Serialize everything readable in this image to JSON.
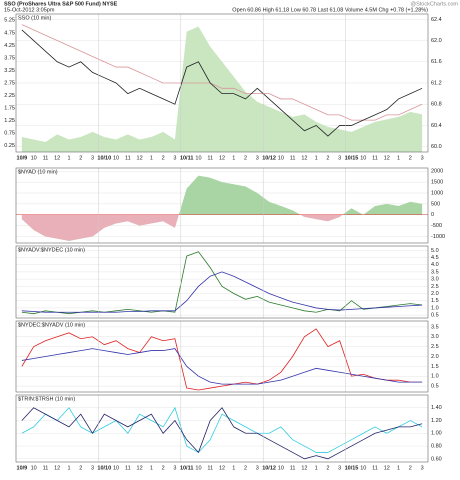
{
  "chart_data": [
    {
      "type": "line",
      "title": "SSO (ProShares Ultra S&P 500 Fund) NYSE",
      "subtitle": "15-Oct-2012 3:05pm",
      "annotation": "Open 60.86  High 61.18  Low 60.78  Last 61.08  Volume 4.5M  Chg +0.78 (+1.28%)",
      "watermark": "@StockCharts.com",
      "legend": "SSO (10 min)",
      "categories": [
        "10/9",
        "10",
        "11",
        "12",
        "1",
        "2",
        "3",
        "10/10",
        "10",
        "11",
        "12",
        "1",
        "2",
        "3",
        "10/11",
        "10",
        "11",
        "12",
        "1",
        "2",
        "3",
        "10/12",
        "10",
        "11",
        "12",
        "1",
        "2",
        "3",
        "10/15",
        "10",
        "11",
        "12",
        "1",
        "2",
        "3"
      ],
      "ylim": [
        59.9,
        62.5
      ],
      "yticks": [
        {
          "value": 60,
          "label": "60.0"
        },
        60.4,
        60.8,
        61.2,
        61.6,
        {
          "value": 62,
          "label": "62.0"
        },
        62.4
      ],
      "y2lim": [
        0,
        5.5
      ],
      "y2ticks": [
        0.25,
        0.75,
        1.25,
        1.75,
        2.25,
        2.75,
        3.25,
        3.75,
        4.25,
        4.75,
        5.25
      ],
      "grid": true,
      "series": [
        {
          "type": "area",
          "axis": "y2",
          "color": "#c9e6c1",
          "values": [
            0.6,
            0.5,
            0.4,
            0.7,
            0.5,
            0.6,
            0.8,
            0.6,
            0.5,
            0.7,
            0.5,
            0.6,
            0.8,
            0.5,
            4.8,
            5.0,
            4.2,
            3.6,
            3.0,
            2.4,
            2.0,
            1.8,
            1.6,
            1.4,
            1.5,
            1.2,
            1.0,
            0.9,
            0.8,
            1.0,
            1.2,
            1.3,
            1.4,
            1.6,
            1.5
          ]
        },
        {
          "type": "line",
          "color": "#d9959a",
          "values": [
            62.3,
            62.2,
            62.1,
            62.0,
            61.9,
            61.8,
            61.7,
            61.6,
            61.5,
            61.5,
            61.4,
            61.3,
            61.2,
            61.2,
            61.2,
            61.2,
            61.2,
            61.1,
            61.1,
            61.0,
            61.0,
            61.0,
            60.9,
            60.9,
            60.8,
            60.7,
            60.6,
            60.6,
            60.5,
            60.5,
            60.5,
            60.6,
            60.6,
            60.7,
            60.8
          ]
        },
        {
          "type": "line",
          "color": "#222222",
          "values": [
            62.2,
            62.0,
            61.8,
            61.6,
            61.5,
            61.6,
            61.4,
            61.3,
            61.2,
            61.0,
            61.1,
            61.0,
            60.9,
            60.8,
            61.5,
            61.6,
            61.2,
            61.0,
            61.0,
            60.9,
            61.1,
            60.9,
            60.7,
            60.5,
            60.3,
            60.4,
            60.2,
            60.4,
            60.4,
            60.5,
            60.6,
            60.7,
            60.9,
            61.0,
            61.1
          ]
        }
      ]
    },
    {
      "type": "area",
      "legend": "$NYAD (10 min)",
      "ylim": [
        -1300,
        2150
      ],
      "yticks": [
        -1000,
        -500,
        0,
        500,
        1000,
        1500,
        2000
      ],
      "grid": true,
      "series": [
        {
          "type": "area",
          "color": "#a9d4a3",
          "negative_color": "#eab0ba",
          "values": [
            -200,
            -700,
            -1000,
            -1100,
            -1200,
            -1100,
            -1000,
            -600,
            -400,
            -300,
            -500,
            -400,
            -300,
            -600,
            1200,
            1800,
            1700,
            1500,
            1400,
            1300,
            1000,
            600,
            400,
            200,
            -100,
            -200,
            -300,
            -100,
            300,
            0,
            400,
            500,
            400,
            600,
            500
          ]
        }
      ]
    },
    {
      "type": "line",
      "legend": "$NYADV:$NYDEC (10 min)",
      "ylim": [
        0.3,
        5.3
      ],
      "yticks": [
        0.5,
        {
          "value": 1,
          "label": "1.0"
        },
        1.5,
        {
          "value": 2,
          "label": "2.0"
        },
        2.5,
        {
          "value": 3,
          "label": "3.0"
        },
        3.5,
        {
          "value": 4,
          "label": "4.0"
        },
        4.5,
        {
          "value": 5,
          "label": "5.0"
        }
      ],
      "grid": true,
      "series": [
        {
          "type": "line",
          "color": "#2a7a2a",
          "values": [
            0.7,
            0.6,
            0.8,
            0.7,
            0.6,
            0.7,
            0.8,
            0.7,
            0.8,
            0.9,
            0.8,
            0.7,
            0.8,
            0.7,
            4.6,
            4.9,
            3.8,
            2.5,
            2.0,
            1.6,
            1.8,
            1.4,
            1.2,
            1.0,
            0.8,
            0.7,
            0.9,
            0.8,
            1.5,
            0.9,
            1.0,
            1.1,
            1.2,
            1.3,
            1.2
          ]
        },
        {
          "type": "line",
          "color": "#3333aa",
          "values": [
            0.8,
            0.75,
            0.7,
            0.7,
            0.7,
            0.7,
            0.7,
            0.7,
            0.7,
            0.75,
            0.75,
            0.8,
            0.8,
            0.8,
            1.5,
            2.5,
            3.2,
            3.5,
            3.2,
            2.8,
            2.4,
            2.0,
            1.7,
            1.4,
            1.2,
            1.0,
            0.9,
            0.85,
            0.9,
            0.95,
            1.0,
            1.05,
            1.1,
            1.15,
            1.2
          ]
        }
      ]
    },
    {
      "type": "line",
      "legend": "$NYDEC:$NYADV (10 min)",
      "ylim": [
        0.2,
        3.8
      ],
      "yticks": [
        0.5,
        {
          "value": 1,
          "label": "1.0"
        },
        1.5,
        {
          "value": 2,
          "label": "2.0"
        },
        2.5,
        {
          "value": 3,
          "label": "3.0"
        },
        3.5
      ],
      "grid": true,
      "series": [
        {
          "type": "line",
          "color": "#e02020",
          "values": [
            1.5,
            2.5,
            2.8,
            3.0,
            3.2,
            2.9,
            3.0,
            2.6,
            2.8,
            2.4,
            2.2,
            3.0,
            2.8,
            2.9,
            0.4,
            0.3,
            0.4,
            0.5,
            0.6,
            0.7,
            0.6,
            0.8,
            1.2,
            2.0,
            3.0,
            3.4,
            2.5,
            2.8,
            1.0,
            1.1,
            0.9,
            0.8,
            0.8,
            0.7,
            0.7
          ]
        },
        {
          "type": "line",
          "color": "#3333aa",
          "values": [
            1.8,
            1.9,
            2.0,
            2.1,
            2.2,
            2.3,
            2.4,
            2.3,
            2.2,
            2.1,
            2.2,
            2.3,
            2.3,
            2.4,
            1.5,
            1.0,
            0.7,
            0.6,
            0.6,
            0.6,
            0.6,
            0.7,
            0.8,
            1.0,
            1.2,
            1.4,
            1.3,
            1.2,
            1.1,
            1.0,
            0.9,
            0.8,
            0.7,
            0.7,
            0.7
          ]
        }
      ]
    },
    {
      "type": "line",
      "legend": "$TRIN:$TRSH (10 min)",
      "ylim": [
        0.55,
        1.6
      ],
      "yticks": [
        {
          "value": 0.6,
          "label": "0.60"
        },
        {
          "value": 0.8,
          "label": "0.80"
        },
        {
          "value": 1,
          "label": "1.00"
        },
        {
          "value": 1.2,
          "label": "1.20"
        },
        {
          "value": 1.4,
          "label": "1.40"
        }
      ],
      "grid": true,
      "series": [
        {
          "type": "line",
          "color": "#33cce0",
          "values": [
            1.0,
            1.1,
            1.3,
            1.2,
            1.4,
            1.1,
            1.0,
            1.1,
            1.2,
            1.0,
            1.3,
            1.2,
            1.1,
            1.4,
            0.8,
            0.7,
            0.9,
            1.3,
            1.2,
            1.1,
            1.0,
            1.0,
            1.1,
            0.9,
            0.8,
            0.7,
            0.7,
            0.8,
            0.9,
            1.0,
            1.1,
            1.0,
            1.1,
            1.2,
            1.1
          ]
        },
        {
          "type": "line",
          "color": "#222266",
          "values": [
            1.2,
            1.4,
            1.3,
            1.2,
            1.1,
            1.3,
            1.0,
            1.3,
            1.2,
            1.1,
            1.2,
            1.3,
            1.0,
            1.2,
            0.9,
            0.7,
            1.2,
            1.4,
            1.1,
            1.0,
            1.0,
            0.9,
            0.8,
            0.7,
            0.6,
            0.65,
            0.6,
            0.7,
            0.8,
            0.9,
            1.0,
            1.05,
            1.1,
            1.1,
            1.15
          ]
        }
      ]
    }
  ]
}
